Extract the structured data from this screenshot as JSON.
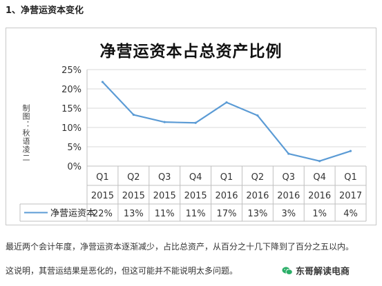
{
  "heading": "1、净营运资本变化",
  "chart_data": {
    "type": "line",
    "title": "净营运资本占总资产比例",
    "credit": "制图：秋语凌二",
    "ylim": [
      0,
      25
    ],
    "yticks": [
      "0%",
      "5%",
      "10%",
      "15%",
      "20%",
      "25%"
    ],
    "grid": true,
    "line_color": "#5b9bd5",
    "categories": [
      {
        "quarter": "Q1",
        "year": "2015"
      },
      {
        "quarter": "Q2",
        "year": "2015"
      },
      {
        "quarter": "Q3",
        "year": "2015"
      },
      {
        "quarter": "Q4",
        "year": "2015"
      },
      {
        "quarter": "Q1",
        "year": "2016"
      },
      {
        "quarter": "Q2",
        "year": "2016"
      },
      {
        "quarter": "Q3",
        "year": "2016"
      },
      {
        "quarter": "Q4",
        "year": "2016"
      },
      {
        "quarter": "Q1",
        "year": "2017"
      }
    ],
    "series": [
      {
        "name": "净营运资本",
        "values": [
          21.8,
          13.3,
          11.4,
          11.2,
          16.5,
          13.1,
          3.2,
          1.3,
          3.9
        ],
        "labels": [
          "22%",
          "13%",
          "11%",
          "11%",
          "17%",
          "13%",
          "3%",
          "1%",
          "4%"
        ]
      }
    ]
  },
  "paragraph1": "最近两个会计年度，净营运资本逐渐减少，占比总资产，从百分之十几下降到了百分之五以内。",
  "paragraph2": "这说明，其营运结果是恶化的，但这可能并不能说明太多问题。",
  "watermark": {
    "text": "东哥解读电商",
    "icon": "wechat-logo-icon",
    "color": "#2aae67"
  }
}
